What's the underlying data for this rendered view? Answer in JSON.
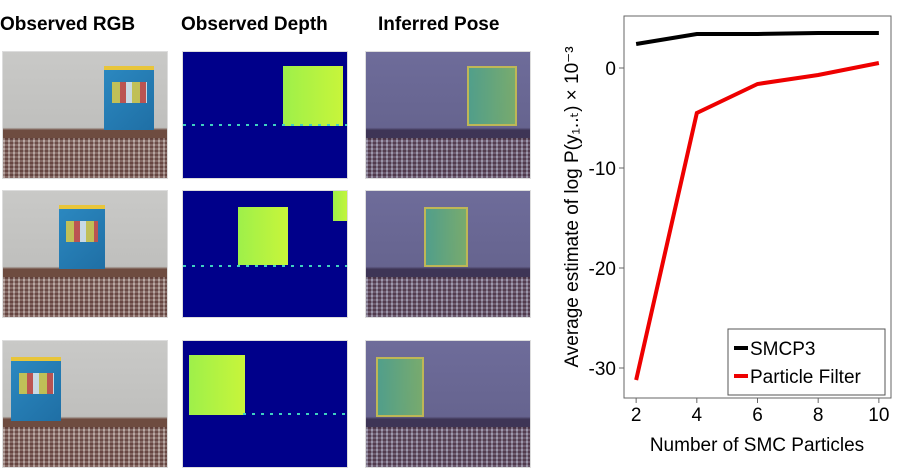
{
  "columns": [
    "Observed RGB",
    "Observed Depth",
    "Inferred Pose"
  ],
  "chart_data": {
    "type": "line",
    "xlabel": "Number of SMC Particles",
    "ylabel": "Average estimate of log P(y₁..ₜ) × 10⁻³",
    "x": [
      2,
      4,
      6,
      8,
      10
    ],
    "xticks": [
      "2",
      "4",
      "6",
      "8",
      "10"
    ],
    "yticks": [
      0,
      -10,
      -20,
      -30
    ],
    "ytick_labels": [
      "0",
      "-10",
      "-20",
      "-30"
    ],
    "xlim": [
      1.6,
      10.4
    ],
    "ylim": [
      -33,
      5.2
    ],
    "grid": false,
    "legend_position": "bottom-right",
    "series": [
      {
        "name": "SMCP3",
        "color": "#000000",
        "values": [
          2.4,
          3.4,
          3.4,
          3.5,
          3.5
        ]
      },
      {
        "name": "Particle Filter",
        "color": "#ee0000",
        "values": [
          -31.2,
          -4.5,
          -1.6,
          -0.7,
          0.5
        ]
      }
    ]
  }
}
